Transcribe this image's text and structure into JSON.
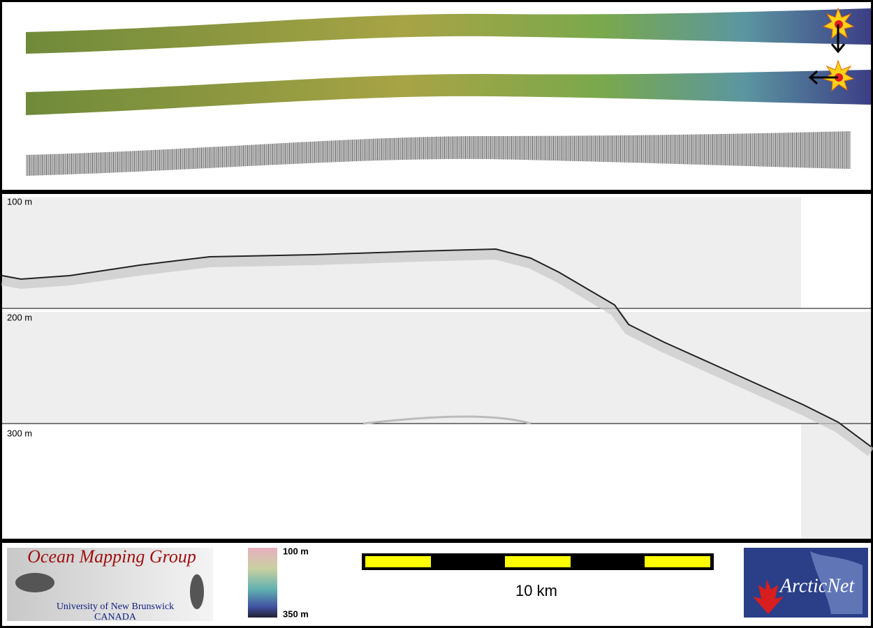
{
  "profile": {
    "depth_labels": [
      "100 m",
      "200 m",
      "300 m"
    ]
  },
  "legend": {
    "logo_title": "Ocean Mapping Group",
    "logo_line1": "University of New Brunswick",
    "logo_line2": "CANADA",
    "colorbar_top": "100 m",
    "colorbar_bottom": "350 m",
    "scale_label": "10 km",
    "partner": "ArcticNet"
  }
}
